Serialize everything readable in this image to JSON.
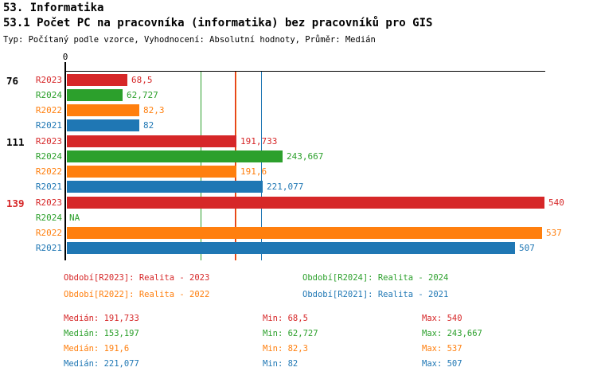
{
  "page": {
    "title1": "53. Informatika",
    "title2": "53.1 Počet PC na pracovníka (informatika) bez pracovníků pro GIS",
    "subtitle": "Typ: Počítaný podle vzorce, Vyhodnocení: Absolutní hodnoty, Průměr: Medián"
  },
  "colors": {
    "R2023": "#d62728",
    "R2024": "#2ca02c",
    "R2022": "#ff7f0e",
    "R2021": "#1f77b4",
    "axis": "#000000",
    "group_id_default": "#000000",
    "group_id_highlight": "#d62728"
  },
  "chart_data": {
    "type": "bar",
    "orientation": "horizontal",
    "title": "53.1 Počet PC na pracovníka (informatika) bez pracovníků pro GIS",
    "subtitle": "Typ: Počítaný podle vzorce, Vyhodnocení: Absolutní hodnoty, Průměr: Medián",
    "x_axis": {
      "origin_tick_label": "0",
      "xmin": 0,
      "xmax": 543,
      "grid": false
    },
    "series_order": [
      "R2023",
      "R2024",
      "R2022",
      "R2021"
    ],
    "groups": [
      {
        "id": "76",
        "highlighted": false,
        "bars": [
          {
            "series": "R2023",
            "value": 68.5,
            "label": "68,5"
          },
          {
            "series": "R2024",
            "value": 62.727,
            "label": "62,727"
          },
          {
            "series": "R2022",
            "value": 82.3,
            "label": "82,3"
          },
          {
            "series": "R2021",
            "value": 82,
            "label": "82"
          }
        ]
      },
      {
        "id": "111",
        "highlighted": false,
        "bars": [
          {
            "series": "R2023",
            "value": 191.733,
            "label": "191,733"
          },
          {
            "series": "R2024",
            "value": 243.667,
            "label": "243,667"
          },
          {
            "series": "R2022",
            "value": 191.6,
            "label": "191,6"
          },
          {
            "series": "R2021",
            "value": 221.077,
            "label": "221,077"
          }
        ]
      },
      {
        "id": "139",
        "highlighted": true,
        "bars": [
          {
            "series": "R2023",
            "value": 540,
            "label": "540"
          },
          {
            "series": "R2024",
            "value": null,
            "label": "NA"
          },
          {
            "series": "R2022",
            "value": 537,
            "label": "537"
          },
          {
            "series": "R2021",
            "value": 507,
            "label": "507"
          }
        ]
      }
    ],
    "median_lines": [
      {
        "series": "R2024",
        "value": 153.197
      },
      {
        "series": "R2023",
        "value": 191.733
      },
      {
        "series": "R2022",
        "value": 191.6
      },
      {
        "series": "R2021",
        "value": 221.077
      }
    ],
    "legend": [
      {
        "series": "R2023",
        "label": "Období[R2023]: Realita - 2023"
      },
      {
        "series": "R2024",
        "label": "Období[R2024]: Realita - 2024"
      },
      {
        "series": "R2022",
        "label": "Období[R2022]: Realita - 2022"
      },
      {
        "series": "R2021",
        "label": "Období[R2021]: Realita - 2021"
      }
    ],
    "stats": {
      "median_label": "Medián",
      "min_label": "Min",
      "max_label": "Max",
      "rows": [
        {
          "series": "R2023",
          "median": "191,733",
          "min": "68,5",
          "max": "540"
        },
        {
          "series": "R2024",
          "median": "153,197",
          "min": "62,727",
          "max": "243,667"
        },
        {
          "series": "R2022",
          "median": "191,6",
          "min": "82,3",
          "max": "537"
        },
        {
          "series": "R2021",
          "median": "221,077",
          "min": "82",
          "max": "507"
        }
      ]
    }
  }
}
